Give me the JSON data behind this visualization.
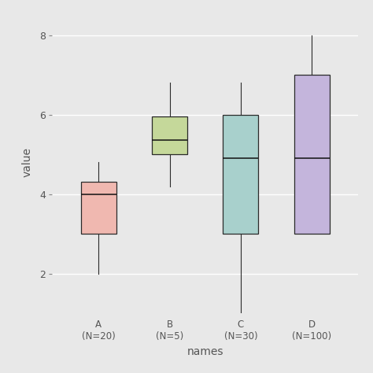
{
  "groups": [
    "A\n(N=20)",
    "B\n(N=5)",
    "C\n(N=30)",
    "D\n(N=100)"
  ],
  "colors": [
    "#F0B8B0",
    "#C5D89A",
    "#A8D0CC",
    "#C4B5DC"
  ],
  "box_stats": [
    {
      "whislo": 2.0,
      "q1": 3.0,
      "med": 4.0,
      "q3": 4.3,
      "whishi": 4.8
    },
    {
      "whislo": 4.2,
      "q1": 5.0,
      "med": 5.35,
      "q3": 5.95,
      "whishi": 6.8
    },
    {
      "whislo": 1.0,
      "q1": 3.0,
      "med": 4.9,
      "q3": 6.0,
      "whishi": 6.8
    },
    {
      "whislo": 3.0,
      "q1": 3.0,
      "med": 4.9,
      "q3": 7.0,
      "whishi": 8.0
    }
  ],
  "ylabel": "value",
  "xlabel": "names",
  "ylim": [
    1.0,
    8.6
  ],
  "yticks": [
    2,
    4,
    6,
    8
  ],
  "bg_color": "#E8E8E8",
  "grid_color": "#FFFFFF",
  "box_width": 0.5,
  "tick_color": "#888888",
  "label_color": "#555555"
}
